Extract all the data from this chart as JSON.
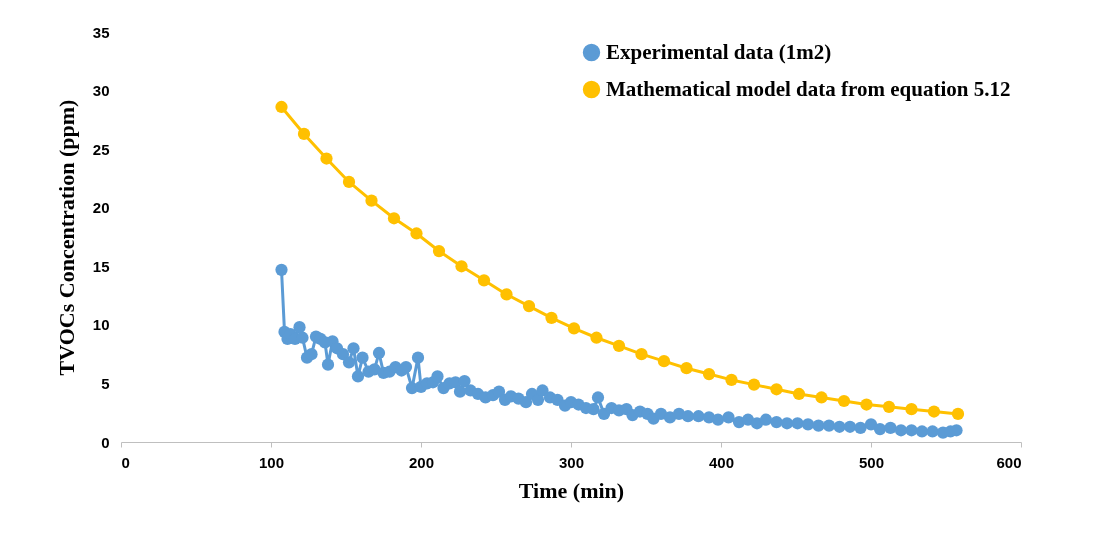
{
  "chart_data": {
    "type": "line",
    "xlabel": "Time (min)",
    "ylabel": "TVOCs Concentration (ppm)",
    "xlim": [
      0,
      600
    ],
    "xticks": [
      0,
      100,
      200,
      300,
      400,
      500,
      600
    ],
    "ylim": [
      0,
      35
    ],
    "yticks": [
      0,
      5,
      10,
      15,
      20,
      25,
      30,
      35
    ],
    "grid": false,
    "legend": "top right",
    "marker": "circle",
    "line_style": "solid",
    "series": [
      {
        "name": "Experimental data (1m2)",
        "color": "#5b9bd5",
        "x": [
          107,
          109,
          111,
          113,
          116,
          119,
          121,
          124,
          127,
          130,
          133,
          136,
          138,
          141,
          144,
          148,
          152,
          155,
          158,
          161,
          165,
          169,
          172,
          175,
          179,
          183,
          187,
          190,
          194,
          198,
          200,
          204,
          208,
          211,
          215,
          219,
          223,
          226,
          229,
          233,
          238,
          243,
          248,
          252,
          256,
          260,
          265,
          270,
          274,
          278,
          281,
          286,
          291,
          296,
          300,
          305,
          310,
          315,
          318,
          322,
          327,
          332,
          337,
          341,
          346,
          351,
          355,
          360,
          366,
          372,
          378,
          385,
          392,
          398,
          405,
          412,
          418,
          424,
          430,
          437,
          444,
          451,
          458,
          465,
          472,
          479,
          486,
          493,
          500,
          506,
          513,
          520,
          527,
          534,
          541,
          548,
          553,
          557
        ],
        "values": [
          14.7,
          9.4,
          8.8,
          9.2,
          8.8,
          9.8,
          8.9,
          7.2,
          7.5,
          9.0,
          8.8,
          8.5,
          6.6,
          8.6,
          8.0,
          7.5,
          6.8,
          8.0,
          5.6,
          7.2,
          6.0,
          6.2,
          7.6,
          5.9,
          6.0,
          6.4,
          6.1,
          6.4,
          4.6,
          7.2,
          4.7,
          5.0,
          5.1,
          5.6,
          4.6,
          5.0,
          5.1,
          4.3,
          5.2,
          4.4,
          4.1,
          3.8,
          4.0,
          4.3,
          3.6,
          3.9,
          3.7,
          3.4,
          4.1,
          3.6,
          4.4,
          3.8,
          3.6,
          3.1,
          3.4,
          3.2,
          2.9,
          2.8,
          3.8,
          2.4,
          2.9,
          2.7,
          2.8,
          2.3,
          2.6,
          2.4,
          2.0,
          2.4,
          2.1,
          2.4,
          2.2,
          2.2,
          2.1,
          1.9,
          2.1,
          1.7,
          1.9,
          1.6,
          1.9,
          1.7,
          1.6,
          1.6,
          1.5,
          1.4,
          1.4,
          1.3,
          1.3,
          1.2,
          1.5,
          1.1,
          1.2,
          1.0,
          1.0,
          0.9,
          0.9,
          0.8,
          0.9,
          1.0
        ]
      },
      {
        "name": "Mathematical model data from equation 5.12",
        "color": "#ffc000",
        "x": [
          107,
          122,
          137,
          152,
          167,
          182,
          197,
          212,
          227,
          242,
          257,
          272,
          287,
          302,
          317,
          332,
          347,
          362,
          377,
          392,
          407,
          422,
          437,
          452,
          467,
          482,
          497,
          512,
          527,
          542,
          558
        ],
        "values": [
          28.6,
          26.3,
          24.2,
          22.2,
          20.6,
          19.1,
          17.8,
          16.3,
          15.0,
          13.8,
          12.6,
          11.6,
          10.6,
          9.7,
          8.9,
          8.2,
          7.5,
          6.9,
          6.3,
          5.8,
          5.3,
          4.9,
          4.5,
          4.1,
          3.8,
          3.5,
          3.2,
          3.0,
          2.8,
          2.6,
          2.4
        ]
      }
    ]
  }
}
